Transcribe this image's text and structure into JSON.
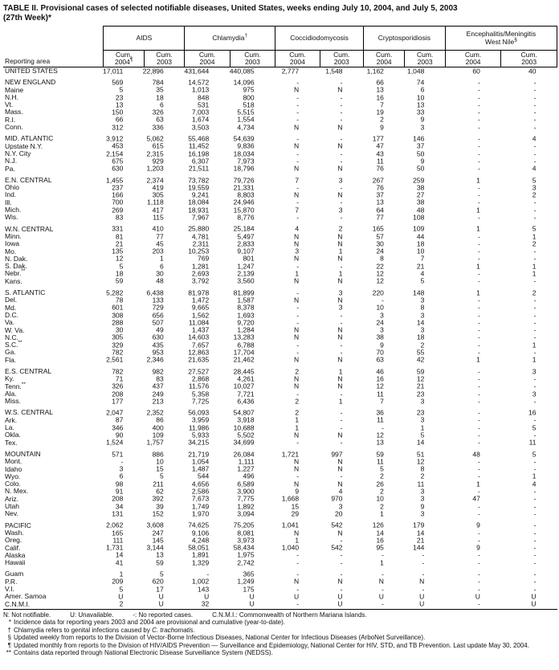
{
  "title": {
    "line1": "TABLE II. Provisional cases of selected notifiable diseases, United States, weeks ending July 10, 2004, and July 5, 2003",
    "line2": "(27th Week)*"
  },
  "header": {
    "reporting_area_label": "Reporting area",
    "groups": [
      {
        "name": "AIDS",
        "marker": "",
        "sub": [
          {
            "label": "Cum.",
            "year": "2004",
            "marker": "¶"
          },
          {
            "label": "Cum.",
            "year": "2003",
            "marker": ""
          }
        ]
      },
      {
        "name": "Chlamydia",
        "marker": "†",
        "sub": [
          {
            "label": "Cum.",
            "year": "2004",
            "marker": ""
          },
          {
            "label": "Cum.",
            "year": "2003",
            "marker": ""
          }
        ]
      },
      {
        "name": "Coccidiodomycosis",
        "marker": "",
        "sub": [
          {
            "label": "Cum.",
            "year": "2004",
            "marker": ""
          },
          {
            "label": "Cum.",
            "year": "2003",
            "marker": ""
          }
        ]
      },
      {
        "name": "Cryptosporidiosis",
        "marker": "",
        "sub": [
          {
            "label": "Cum.",
            "year": "2004",
            "marker": ""
          },
          {
            "label": "Cum.",
            "year": "2003",
            "marker": ""
          }
        ]
      },
      {
        "name": "Encephalitis/Meningitis",
        "name2": "West Nile",
        "marker": "§",
        "sub": [
          {
            "label": "Cum.",
            "year": "2004",
            "marker": ""
          },
          {
            "label": "Cum.",
            "year": "2003",
            "marker": ""
          }
        ]
      }
    ]
  },
  "rows": [
    {
      "area": "UNITED STATES",
      "sup": "",
      "gap": false,
      "values": [
        "17,011",
        "22,896",
        "431,644",
        "440,085",
        "2,777",
        "1,548",
        "1,162",
        "1,048",
        "60",
        "40"
      ]
    },
    {
      "area": "NEW ENGLAND",
      "sup": "",
      "gap": true,
      "values": [
        "569",
        "784",
        "14,572",
        "14,096",
        "-",
        "-",
        "66",
        "74",
        "-",
        "-"
      ]
    },
    {
      "area": "Maine",
      "sup": "",
      "gap": false,
      "values": [
        "5",
        "35",
        "1,013",
        "975",
        "N",
        "N",
        "13",
        "6",
        "-",
        "-"
      ]
    },
    {
      "area": "N.H.",
      "sup": "",
      "gap": false,
      "values": [
        "23",
        "18",
        "848",
        "800",
        "-",
        "-",
        "16",
        "10",
        "-",
        "-"
      ]
    },
    {
      "area": "Vt.",
      "sup": "",
      "gap": false,
      "values": [
        "13",
        "6",
        "531",
        "518",
        "-",
        "-",
        "7",
        "13",
        "-",
        "-"
      ]
    },
    {
      "area": "Mass.",
      "sup": "",
      "gap": false,
      "values": [
        "150",
        "326",
        "7,003",
        "5,515",
        "-",
        "-",
        "19",
        "33",
        "-",
        "-"
      ]
    },
    {
      "area": "R.I.",
      "sup": "",
      "gap": false,
      "values": [
        "66",
        "63",
        "1,674",
        "1,554",
        "-",
        "-",
        "2",
        "9",
        "-",
        "-"
      ]
    },
    {
      "area": "Conn.",
      "sup": "",
      "gap": false,
      "values": [
        "312",
        "336",
        "3,503",
        "4,734",
        "N",
        "N",
        "9",
        "3",
        "-",
        "-"
      ]
    },
    {
      "area": "MID. ATLANTIC",
      "sup": "",
      "gap": true,
      "values": [
        "3,912",
        "5,062",
        "55,468",
        "54,639",
        "-",
        "-",
        "177",
        "146",
        "-",
        "4"
      ]
    },
    {
      "area": "Upstate N.Y.",
      "sup": "",
      "gap": false,
      "values": [
        "453",
        "615",
        "11,452",
        "9,836",
        "N",
        "N",
        "47",
        "37",
        "-",
        "-"
      ]
    },
    {
      "area": "N.Y. City",
      "sup": "",
      "gap": false,
      "values": [
        "2,154",
        "2,315",
        "16,198",
        "18,034",
        "-",
        "-",
        "43",
        "50",
        "-",
        "-"
      ]
    },
    {
      "area": "N.J.",
      "sup": "",
      "gap": false,
      "values": [
        "675",
        "929",
        "6,307",
        "7,973",
        "-",
        "-",
        "11",
        "9",
        "-",
        "-"
      ]
    },
    {
      "area": "Pa.",
      "sup": "",
      "gap": false,
      "values": [
        "630",
        "1,203",
        "21,511",
        "18,796",
        "N",
        "N",
        "76",
        "50",
        "-",
        "4"
      ]
    },
    {
      "area": "E.N. CENTRAL",
      "sup": "",
      "gap": true,
      "values": [
        "1,455",
        "2,374",
        "73,782",
        "79,726",
        "7",
        "3",
        "267",
        "259",
        "1",
        "5"
      ]
    },
    {
      "area": "Ohio",
      "sup": "",
      "gap": false,
      "values": [
        "237",
        "419",
        "19,559",
        "21,331",
        "-",
        "-",
        "76",
        "38",
        "-",
        "3"
      ]
    },
    {
      "area": "Ind.",
      "sup": "",
      "gap": false,
      "values": [
        "166",
        "305",
        "9,241",
        "8,803",
        "N",
        "N",
        "37",
        "27",
        "-",
        "2"
      ]
    },
    {
      "area": "Ill.",
      "sup": "",
      "gap": false,
      "values": [
        "700",
        "1,118",
        "18,084",
        "24,946",
        "-",
        "-",
        "13",
        "38",
        "-",
        "-"
      ]
    },
    {
      "area": "Mich.",
      "sup": "",
      "gap": false,
      "values": [
        "269",
        "417",
        "18,931",
        "15,870",
        "7",
        "3",
        "64",
        "48",
        "1",
        "-"
      ]
    },
    {
      "area": "Wis.",
      "sup": "",
      "gap": false,
      "values": [
        "83",
        "115",
        "7,967",
        "8,776",
        "-",
        "-",
        "77",
        "108",
        "-",
        "-"
      ]
    },
    {
      "area": "W.N. CENTRAL",
      "sup": "",
      "gap": true,
      "values": [
        "331",
        "410",
        "25,880",
        "25,184",
        "4",
        "2",
        "165",
        "109",
        "1",
        "5"
      ]
    },
    {
      "area": "Minn.",
      "sup": "",
      "gap": false,
      "values": [
        "81",
        "77",
        "4,781",
        "5,497",
        "N",
        "N",
        "57",
        "44",
        "-",
        "1"
      ]
    },
    {
      "area": "Iowa",
      "sup": "",
      "gap": false,
      "values": [
        "21",
        "45",
        "2,311",
        "2,833",
        "N",
        "N",
        "30",
        "18",
        "-",
        "2"
      ]
    },
    {
      "area": "Mo.",
      "sup": "",
      "gap": false,
      "values": [
        "135",
        "203",
        "10,253",
        "9,107",
        "3",
        "1",
        "24",
        "10",
        "-",
        "-"
      ]
    },
    {
      "area": "N. Dak.",
      "sup": "",
      "gap": false,
      "values": [
        "12",
        "1",
        "769",
        "801",
        "N",
        "N",
        "8",
        "7",
        "-",
        "-"
      ]
    },
    {
      "area": "S. Dak.",
      "sup": "",
      "gap": false,
      "values": [
        "5",
        "6",
        "1,281",
        "1,247",
        "-",
        "-",
        "22",
        "21",
        "1",
        "1"
      ]
    },
    {
      "area": "Nebr.",
      "sup": "**",
      "gap": false,
      "values": [
        "18",
        "30",
        "2,693",
        "2,139",
        "1",
        "1",
        "12",
        "4",
        "-",
        "1"
      ]
    },
    {
      "area": "Kans.",
      "sup": "",
      "gap": false,
      "values": [
        "59",
        "48",
        "3,792",
        "3,560",
        "N",
        "N",
        "12",
        "5",
        "-",
        "-"
      ]
    },
    {
      "area": "S. ATLANTIC",
      "sup": "",
      "gap": true,
      "values": [
        "5,282",
        "6,438",
        "81,978",
        "81,899",
        "-",
        "3",
        "220",
        "148",
        "1",
        "2"
      ]
    },
    {
      "area": "Del.",
      "sup": "",
      "gap": false,
      "values": [
        "78",
        "133",
        "1,472",
        "1,587",
        "N",
        "N",
        "-",
        "3",
        "-",
        "-"
      ]
    },
    {
      "area": "Md.",
      "sup": "",
      "gap": false,
      "values": [
        "601",
        "729",
        "9,665",
        "8,378",
        "-",
        "3",
        "10",
        "8",
        "-",
        "-"
      ]
    },
    {
      "area": "D.C.",
      "sup": "",
      "gap": false,
      "values": [
        "308",
        "656",
        "1,562",
        "1,693",
        "-",
        "-",
        "3",
        "3",
        "-",
        "-"
      ]
    },
    {
      "area": "Va.",
      "sup": "",
      "gap": false,
      "values": [
        "288",
        "507",
        "11,084",
        "9,720",
        "-",
        "-",
        "24",
        "14",
        "-",
        "-"
      ]
    },
    {
      "area": "W. Va.",
      "sup": "",
      "gap": false,
      "values": [
        "30",
        "49",
        "1,437",
        "1,284",
        "N",
        "N",
        "3",
        "3",
        "-",
        "-"
      ]
    },
    {
      "area": "N.C.",
      "sup": "",
      "gap": false,
      "values": [
        "305",
        "630",
        "14,603",
        "13,283",
        "N",
        "N",
        "38",
        "18",
        "-",
        "-"
      ]
    },
    {
      "area": "S.C.",
      "sup": "**",
      "gap": false,
      "values": [
        "329",
        "435",
        "7,657",
        "6,788",
        "-",
        "-",
        "9",
        "2",
        "-",
        "1"
      ]
    },
    {
      "area": "Ga.",
      "sup": "",
      "gap": false,
      "values": [
        "782",
        "953",
        "12,863",
        "17,704",
        "-",
        "-",
        "70",
        "55",
        "-",
        "-"
      ]
    },
    {
      "area": "Fla.",
      "sup": "",
      "gap": false,
      "values": [
        "2,561",
        "2,346",
        "21,635",
        "21,462",
        "N",
        "N",
        "63",
        "42",
        "1",
        "1"
      ]
    },
    {
      "area": "E.S. CENTRAL",
      "sup": "",
      "gap": true,
      "values": [
        "782",
        "982",
        "27,527",
        "28,445",
        "2",
        "1",
        "46",
        "59",
        "-",
        "3"
      ]
    },
    {
      "area": "Ky.",
      "sup": "",
      "gap": false,
      "values": [
        "71",
        "83",
        "2,868",
        "4,261",
        "N",
        "N",
        "16",
        "12",
        "-",
        "-"
      ]
    },
    {
      "area": "Tenn.",
      "sup": "**",
      "gap": false,
      "values": [
        "326",
        "437",
        "11,576",
        "10,027",
        "N",
        "N",
        "12",
        "21",
        "-",
        "-"
      ]
    },
    {
      "area": "Ala.",
      "sup": "",
      "gap": false,
      "values": [
        "208",
        "249",
        "5,358",
        "7,721",
        "-",
        "-",
        "11",
        "23",
        "-",
        "3"
      ]
    },
    {
      "area": "Miss.",
      "sup": "",
      "gap": false,
      "values": [
        "177",
        "213",
        "7,725",
        "6,436",
        "2",
        "1",
        "7",
        "3",
        "-",
        "-"
      ]
    },
    {
      "area": "W.S. CENTRAL",
      "sup": "",
      "gap": true,
      "values": [
        "2,047",
        "2,352",
        "56,093",
        "54,807",
        "2",
        "-",
        "36",
        "23",
        "-",
        "16"
      ]
    },
    {
      "area": "Ark.",
      "sup": "",
      "gap": false,
      "values": [
        "87",
        "86",
        "3,959",
        "3,918",
        "1",
        "-",
        "11",
        "3",
        "-",
        "-"
      ]
    },
    {
      "area": "La.",
      "sup": "",
      "gap": false,
      "values": [
        "346",
        "400",
        "11,986",
        "10,688",
        "1",
        "-",
        "-",
        "1",
        "-",
        "5"
      ]
    },
    {
      "area": "Okla.",
      "sup": "",
      "gap": false,
      "values": [
        "90",
        "109",
        "5,933",
        "5,502",
        "N",
        "N",
        "12",
        "5",
        "-",
        "-"
      ]
    },
    {
      "area": "Tex.",
      "sup": "",
      "gap": false,
      "values": [
        "1,524",
        "1,757",
        "34,215",
        "34,699",
        "-",
        "-",
        "13",
        "14",
        "-",
        "11"
      ]
    },
    {
      "area": "MOUNTAIN",
      "sup": "",
      "gap": true,
      "values": [
        "571",
        "886",
        "21,719",
        "26,084",
        "1,721",
        "997",
        "59",
        "51",
        "48",
        "5"
      ]
    },
    {
      "area": "Mont.",
      "sup": "",
      "gap": false,
      "values": [
        "-",
        "10",
        "1,054",
        "1,111",
        "N",
        "N",
        "11",
        "12",
        "-",
        "-"
      ]
    },
    {
      "area": "Idaho",
      "sup": "",
      "gap": false,
      "values": [
        "3",
        "15",
        "1,487",
        "1,227",
        "N",
        "N",
        "5",
        "8",
        "-",
        "-"
      ]
    },
    {
      "area": "Wyo.",
      "sup": "",
      "gap": false,
      "values": [
        "6",
        "5",
        "544",
        "496",
        "-",
        "-",
        "2",
        "2",
        "-",
        "1"
      ]
    },
    {
      "area": "Colo.",
      "sup": "",
      "gap": false,
      "values": [
        "98",
        "211",
        "4,656",
        "6,589",
        "N",
        "N",
        "26",
        "11",
        "1",
        "4"
      ]
    },
    {
      "area": "N. Mex.",
      "sup": "",
      "gap": false,
      "values": [
        "91",
        "62",
        "2,586",
        "3,900",
        "9",
        "4",
        "2",
        "3",
        "-",
        "-"
      ]
    },
    {
      "area": "Ariz.",
      "sup": "",
      "gap": false,
      "values": [
        "208",
        "392",
        "7,673",
        "7,775",
        "1,668",
        "970",
        "10",
        "3",
        "47",
        "-"
      ]
    },
    {
      "area": "Utah",
      "sup": "",
      "gap": false,
      "values": [
        "34",
        "39",
        "1,749",
        "1,892",
        "15",
        "3",
        "2",
        "9",
        "-",
        "-"
      ]
    },
    {
      "area": "Nev.",
      "sup": "",
      "gap": false,
      "values": [
        "131",
        "152",
        "1,970",
        "3,094",
        "29",
        "20",
        "1",
        "3",
        "-",
        "-"
      ]
    },
    {
      "area": "PACIFIC",
      "sup": "",
      "gap": true,
      "values": [
        "2,062",
        "3,608",
        "74,625",
        "75,205",
        "1,041",
        "542",
        "126",
        "179",
        "9",
        "-"
      ]
    },
    {
      "area": "Wash.",
      "sup": "",
      "gap": false,
      "values": [
        "165",
        "247",
        "9,106",
        "8,081",
        "N",
        "N",
        "14",
        "14",
        "-",
        "-"
      ]
    },
    {
      "area": "Oreg.",
      "sup": "",
      "gap": false,
      "values": [
        "111",
        "145",
        "4,248",
        "3,973",
        "1",
        "-",
        "16",
        "21",
        "-",
        "-"
      ]
    },
    {
      "area": "Calif.",
      "sup": "",
      "gap": false,
      "values": [
        "1,731",
        "3,144",
        "58,051",
        "58,434",
        "1,040",
        "542",
        "95",
        "144",
        "9",
        "-"
      ]
    },
    {
      "area": "Alaska",
      "sup": "",
      "gap": false,
      "values": [
        "14",
        "13",
        "1,891",
        "1,975",
        "-",
        "-",
        "-",
        "-",
        "-",
        "-"
      ]
    },
    {
      "area": "Hawaii",
      "sup": "",
      "gap": false,
      "values": [
        "41",
        "59",
        "1,329",
        "2,742",
        "-",
        "-",
        "1",
        "-",
        "-",
        "-"
      ]
    },
    {
      "area": "Guam",
      "sup": "",
      "gap": true,
      "values": [
        "1",
        "5",
        "-",
        "365",
        "-",
        "-",
        "-",
        "-",
        "-",
        "-"
      ]
    },
    {
      "area": "P.R.",
      "sup": "",
      "gap": false,
      "values": [
        "209",
        "620",
        "1,002",
        "1,249",
        "N",
        "N",
        "N",
        "N",
        "-",
        "-"
      ]
    },
    {
      "area": "V.I.",
      "sup": "",
      "gap": false,
      "values": [
        "5",
        "17",
        "143",
        "175",
        "-",
        "-",
        "-",
        "-",
        "-",
        "-"
      ]
    },
    {
      "area": "Amer. Samoa",
      "sup": "",
      "gap": false,
      "values": [
        "U",
        "U",
        "U",
        "U",
        "U",
        "U",
        "U",
        "U",
        "U",
        "U"
      ]
    },
    {
      "area": "C.N.M.I.",
      "sup": "",
      "gap": false,
      "values": [
        "2",
        "U",
        "32",
        "U",
        "-",
        "U",
        "-",
        "U",
        "-",
        "U"
      ]
    }
  ],
  "footnotes": {
    "legend": [
      "N: Not notifiable.",
      "U: Unavailable.",
      "-: No reported cases.",
      "C.N.M.I.: Commonwealth of Northern Mariana Islands."
    ],
    "notes": [
      {
        "marker": "*",
        "text": "Incidence data for reporting years 2003 and 2004 are provisional and cumulative (year-to-date).",
        "italic": "",
        "after": ""
      },
      {
        "marker": "†",
        "text": "Chlamydia refers to genital infections caused by ",
        "italic": "C. trachomatis",
        "after": "."
      },
      {
        "marker": "§",
        "text": "Updated weekly from reports to the Division of Vector-Borne Infectious Diseases, National Center for Infectious Diseases (ArboNet Surveillance).",
        "italic": "",
        "after": ""
      },
      {
        "marker": "¶",
        "text": "Updated monthly from reports to the Division of HIV/AIDS Prevention — Surveillance and Epidemiology, National Center for HIV, STD, and TB Prevention. Last update May 30, 2004.",
        "italic": "",
        "after": ""
      },
      {
        "marker": "**",
        "text": "Contains data reported through National Electronic Disease Surveillance System (NEDSS).",
        "italic": "",
        "after": ""
      }
    ]
  }
}
